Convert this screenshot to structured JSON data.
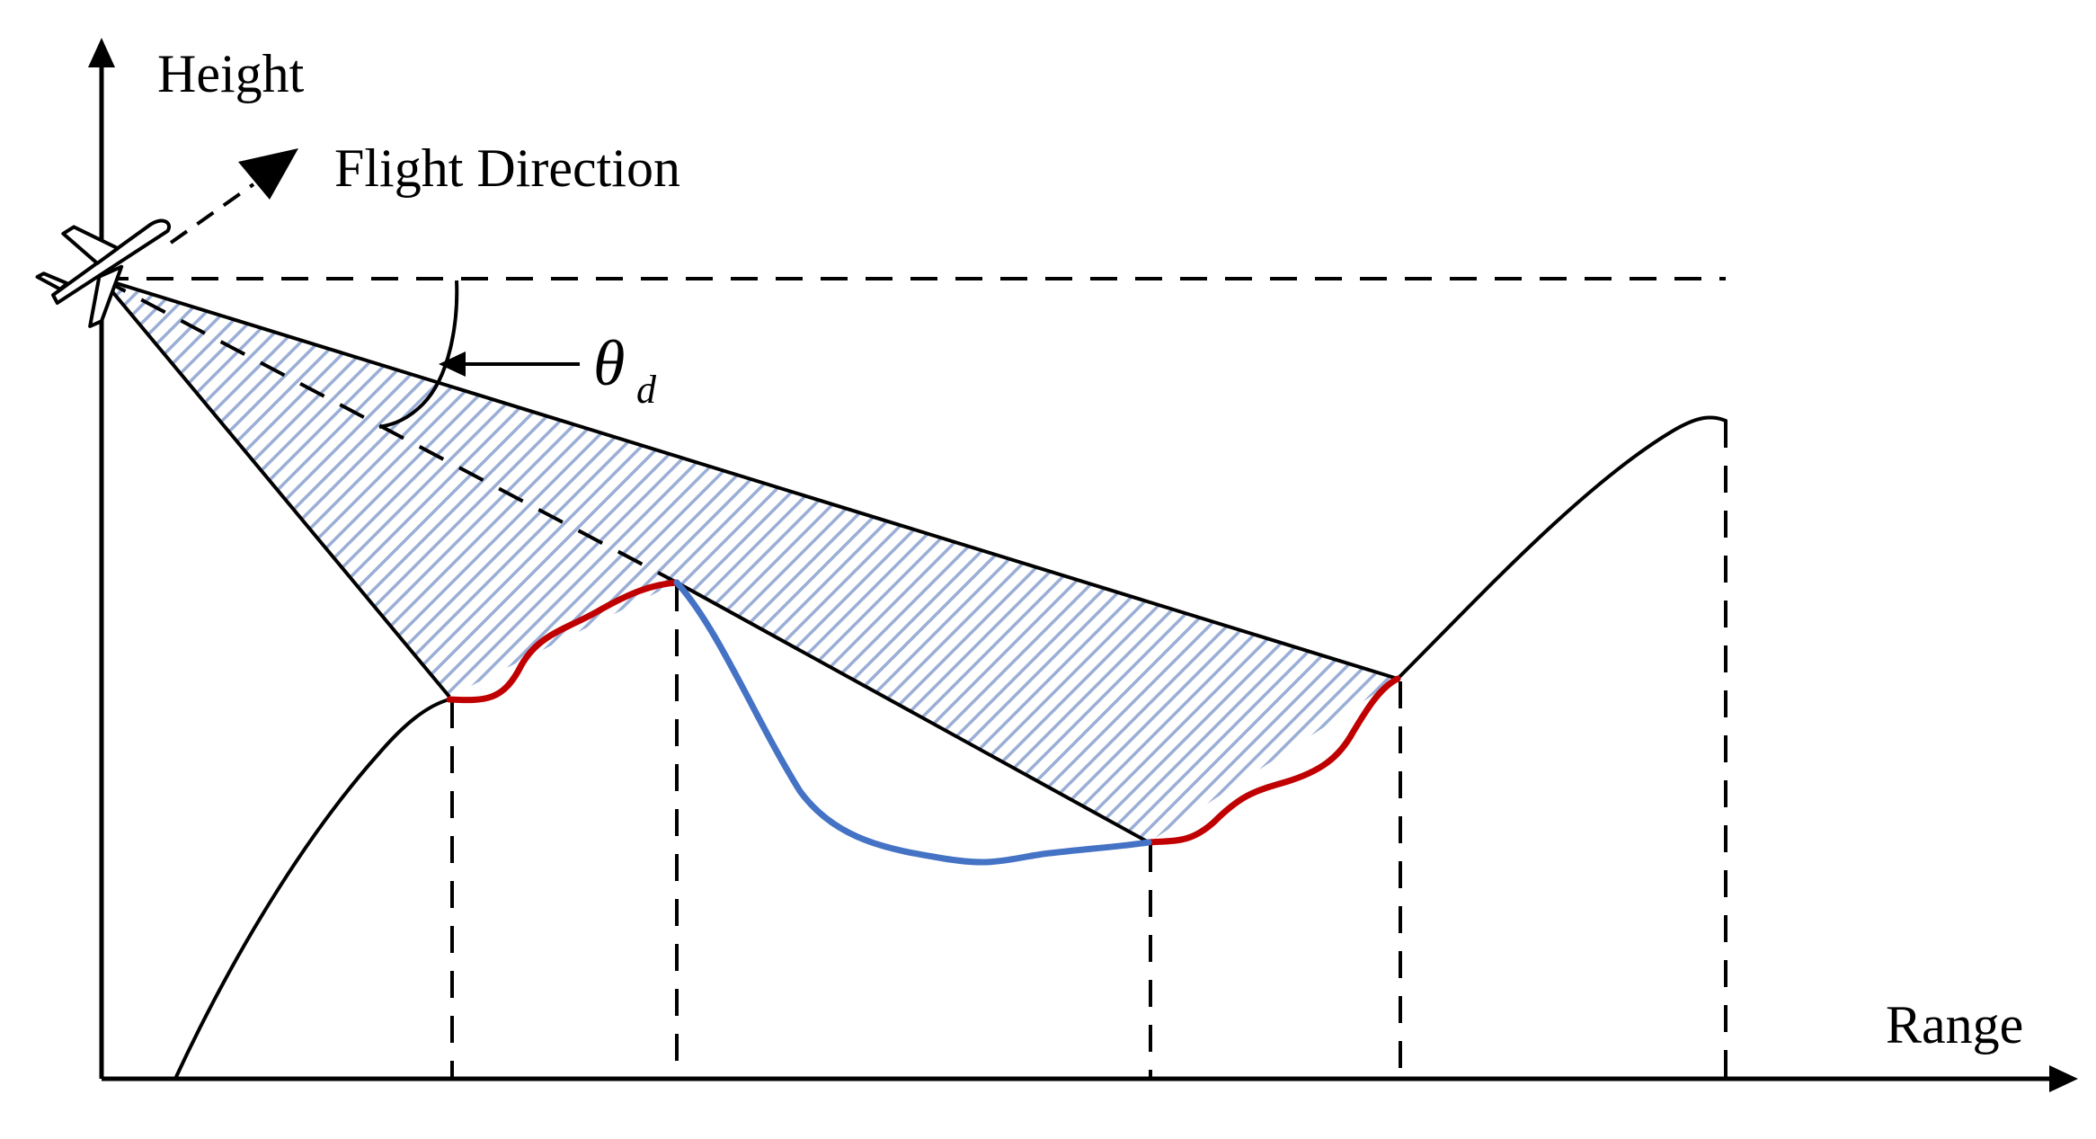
{
  "labels": {
    "y_axis": "Height",
    "x_axis": "Range",
    "flight_direction": "Flight Direction",
    "angle_symbol": "θ",
    "angle_subscript": "d"
  },
  "colors": {
    "ink": "#000000",
    "shadow_hatch": "#9aaed6",
    "illuminated_terrain": "#c00000",
    "shadowed_terrain": "#4472c4",
    "background": "#ffffff"
  },
  "icons": {
    "aircraft": "airplane-icon",
    "direction_arrow": "arrowhead-icon"
  }
}
